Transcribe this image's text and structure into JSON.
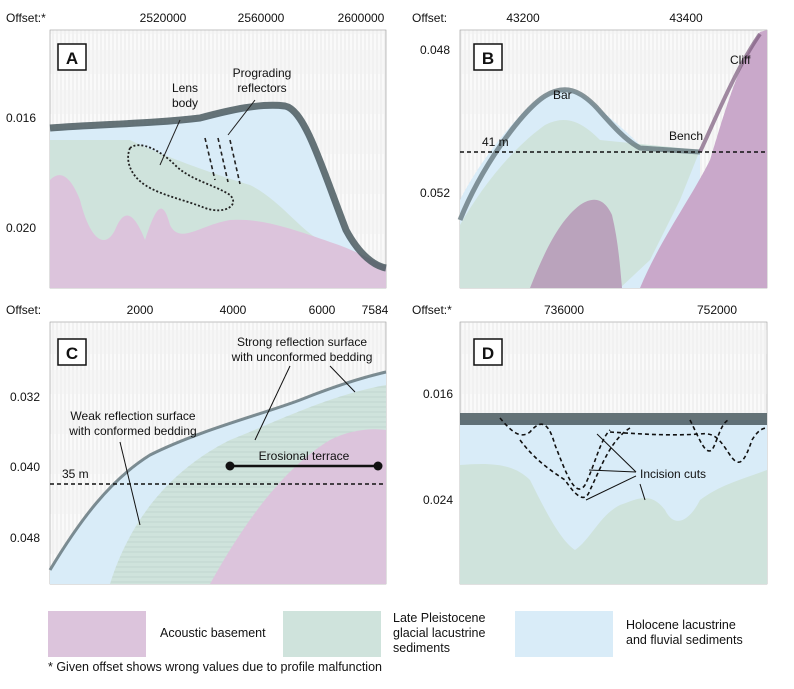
{
  "panels": {
    "A": {
      "letter": "A",
      "offset_label": "Offset:*",
      "x_ticks": [
        "2520000",
        "2560000",
        "2600000"
      ],
      "y_ticks": [
        "0.016",
        "0.020"
      ],
      "annotations": {
        "lens": [
          "Lens",
          "body"
        ],
        "prograding": [
          "Prograding",
          "reflectors"
        ]
      }
    },
    "B": {
      "letter": "B",
      "offset_label": "Offset:",
      "x_ticks": [
        "43200",
        "43400"
      ],
      "y_ticks": [
        "0.048",
        "0.052"
      ],
      "annotations": {
        "bar": "Bar",
        "cliff": "Cliff",
        "bench": "Bench",
        "depth": "41 m"
      }
    },
    "C": {
      "letter": "C",
      "offset_label": "Offset:",
      "x_ticks": [
        "2000",
        "4000",
        "6000",
        "7584"
      ],
      "y_ticks": [
        "0.032",
        "0.040",
        "0.048"
      ],
      "annotations": {
        "strong": [
          "Strong reflection surface",
          "with unconformed bedding"
        ],
        "weak": [
          "Weak reflection surface",
          "with conformed bedding"
        ],
        "terrace": "Erosional terrace",
        "depth": "35 m"
      }
    },
    "D": {
      "letter": "D",
      "offset_label": "Offset:*",
      "x_ticks": [
        "736000",
        "752000"
      ],
      "y_ticks": [
        "0.016",
        "0.024"
      ],
      "annotations": {
        "incision": "Incision cuts"
      }
    }
  },
  "legend": [
    {
      "label": [
        "Acoustic basement"
      ],
      "color": "#dcc4dc"
    },
    {
      "label": [
        "Late Pleistocene",
        "glacial lacustrine",
        "sediments"
      ],
      "color": "#cfe3dc"
    },
    {
      "label": [
        "Holocene lacustrine",
        "and fluvial sediments"
      ],
      "color": "#d9ecf8"
    }
  ],
  "footnote": "* Given offset shows wrong values due to profile malfunction",
  "colors": {
    "basement": "#dcc4dc",
    "pleistocene": "#cfe3dc",
    "holocene": "#d9ecf8",
    "seafloor": "#4a5a60"
  }
}
